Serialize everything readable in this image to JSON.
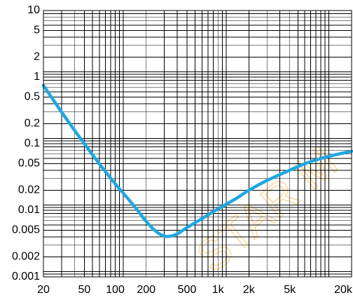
{
  "chart_data": {
    "type": "line",
    "title": "",
    "xlabel": "",
    "ylabel": "",
    "x_scale": "log",
    "y_scale": "log",
    "xlim": [
      20,
      20000
    ],
    "ylim": [
      0.001,
      10
    ],
    "grid": true,
    "x_ticks": [
      {
        "value": 20,
        "label": "20"
      },
      {
        "value": 50,
        "label": "50"
      },
      {
        "value": 100,
        "label": "100"
      },
      {
        "value": 200,
        "label": "200"
      },
      {
        "value": 500,
        "label": "500"
      },
      {
        "value": 1000,
        "label": "1k"
      },
      {
        "value": 2000,
        "label": "2k"
      },
      {
        "value": 5000,
        "label": "5k"
      },
      {
        "value": 20000,
        "label": "20k"
      }
    ],
    "y_ticks": [
      {
        "value": 10,
        "label": "10"
      },
      {
        "value": 5,
        "label": "5"
      },
      {
        "value": 2,
        "label": "2"
      },
      {
        "value": 1,
        "label": "1"
      },
      {
        "value": 0.5,
        "label": "0.5"
      },
      {
        "value": 0.2,
        "label": "0.2"
      },
      {
        "value": 0.1,
        "label": "0.1"
      },
      {
        "value": 0.05,
        "label": "0.05"
      },
      {
        "value": 0.02,
        "label": "0.02"
      },
      {
        "value": 0.01,
        "label": "0.01"
      },
      {
        "value": 0.005,
        "label": "0.005"
      },
      {
        "value": 0.002,
        "label": "0.002"
      },
      {
        "value": 0.001,
        "label": "0.001"
      }
    ],
    "series": [
      {
        "color": "#1fa8e0",
        "x": [
          20,
          30,
          40,
          50,
          70,
          100,
          150,
          200,
          250,
          300,
          350,
          400,
          500,
          700,
          1000,
          1500,
          2000,
          3000,
          5000,
          7000,
          10000,
          15000,
          20000
        ],
        "y": [
          0.75,
          0.3,
          0.16,
          0.1,
          0.05,
          0.025,
          0.012,
          0.0068,
          0.0048,
          0.0041,
          0.0041,
          0.0044,
          0.0055,
          0.0075,
          0.0105,
          0.015,
          0.02,
          0.028,
          0.04,
          0.05,
          0.06,
          0.07,
          0.077
        ]
      }
    ]
  },
  "watermark": {
    "text": "STAR M",
    "color": "#f5a623"
  }
}
